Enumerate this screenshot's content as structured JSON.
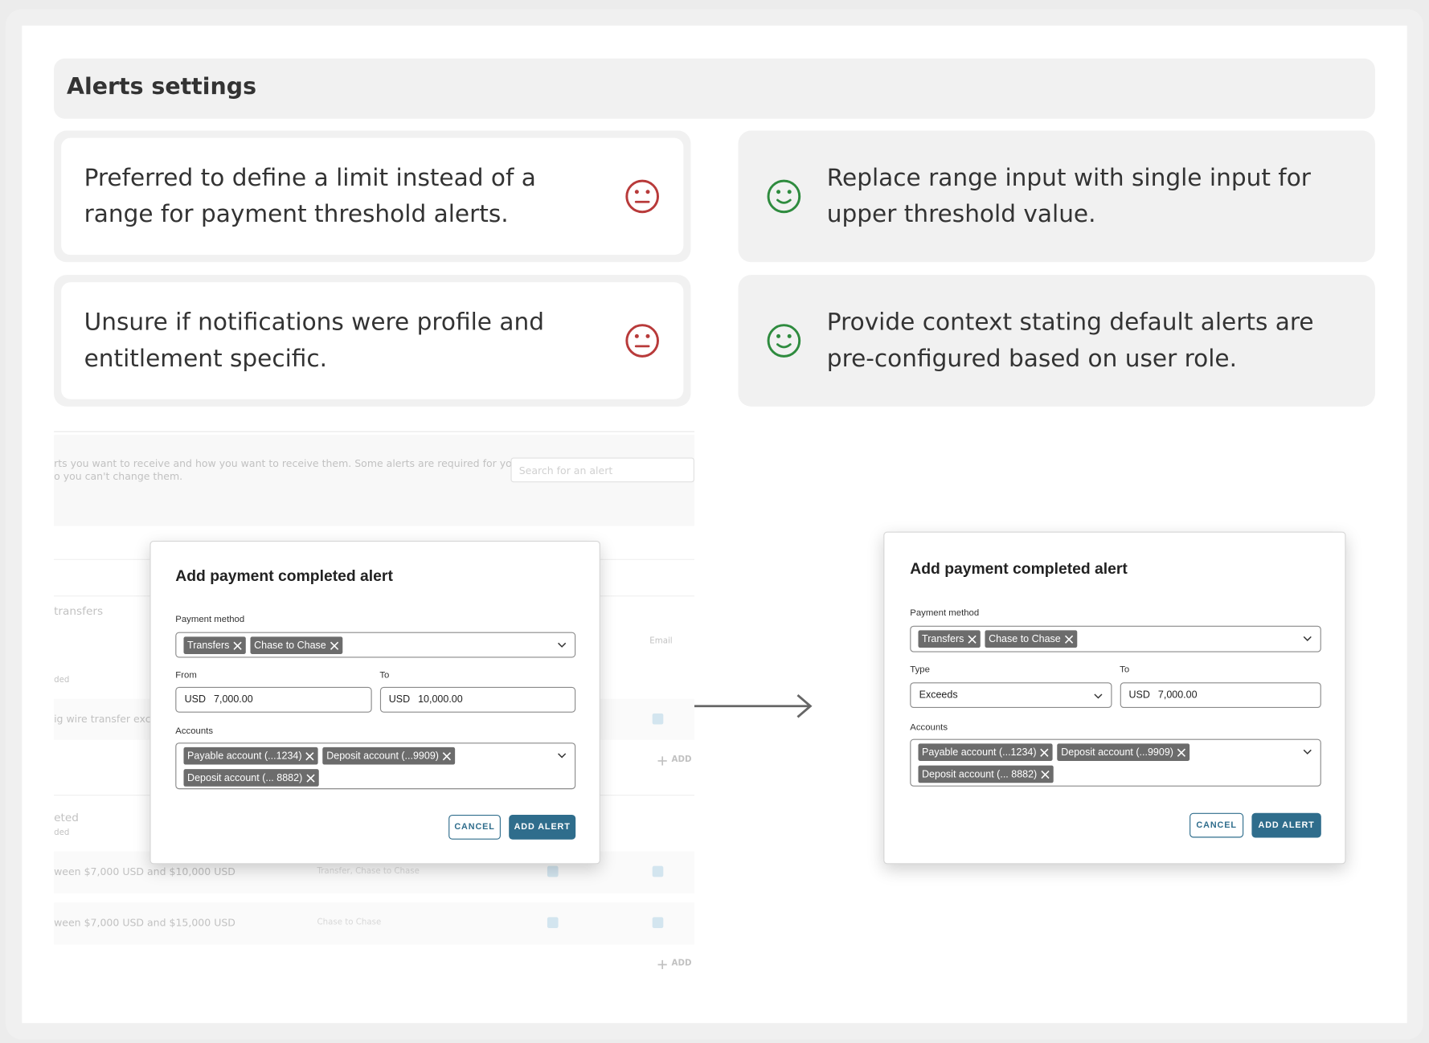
{
  "header": {
    "title": "Alerts settings"
  },
  "issues": [
    {
      "text": "Preferred to define a limit instead of a range for payment threshold alerts."
    },
    {
      "text": "Unsure if notifications were profile and entitlement specific."
    }
  ],
  "solutions": [
    {
      "text": "Replace range input with single input for upper threshold value."
    },
    {
      "text": "Provide context stating default alerts are pre-configured based on user role."
    }
  ],
  "background": {
    "description": [
      "rts you want to receive and how you want to receive them. Some alerts are required for your",
      "o you can't change them."
    ],
    "search_placeholder": "Search for an alert",
    "section_1": "transfers",
    "section_1_sub": "ded",
    "email_header": "Email",
    "row_1": "ig wire transfer excee",
    "add_1": "ADD",
    "section_2": "eted",
    "section_2_sub": "ded",
    "row_2": "ween $7,000 USD and $10,000 USD",
    "row_2_method": "Transfer, Chase to Chase",
    "row_3": "ween $7,000 USD and $15,000 USD",
    "row_3_method": "Chase to Chase",
    "add_2": "ADD"
  },
  "before_modal": {
    "title": "Add payment completed alert",
    "payment_method_label": "Payment method",
    "payment_tags": [
      "Transfers",
      "Chase to Chase"
    ],
    "from_label": "From",
    "from_currency": "USD",
    "from_value": "7,000.00",
    "to_label": "To",
    "to_currency": "USD",
    "to_value": "10,000.00",
    "accounts_label": "Accounts",
    "account_tags": [
      "Payable account (...1234)",
      "Deposit account (...9909)",
      "Deposit account (... 8882)"
    ],
    "cancel": "CANCEL",
    "add": "ADD ALERT"
  },
  "after_modal": {
    "title": "Add payment completed alert",
    "payment_method_label": "Payment method",
    "payment_tags": [
      "Transfers",
      "Chase to Chase"
    ],
    "type_label": "Type",
    "type_value": "Exceeds",
    "to_label": "To",
    "to_currency": "USD",
    "to_value": "7,000.00",
    "accounts_label": "Accounts",
    "account_tags": [
      "Payable account (...1234)",
      "Deposit account (...9909)",
      "Deposit account (... 8882)"
    ],
    "cancel": "CANCEL",
    "add": "ADD ALERT"
  }
}
